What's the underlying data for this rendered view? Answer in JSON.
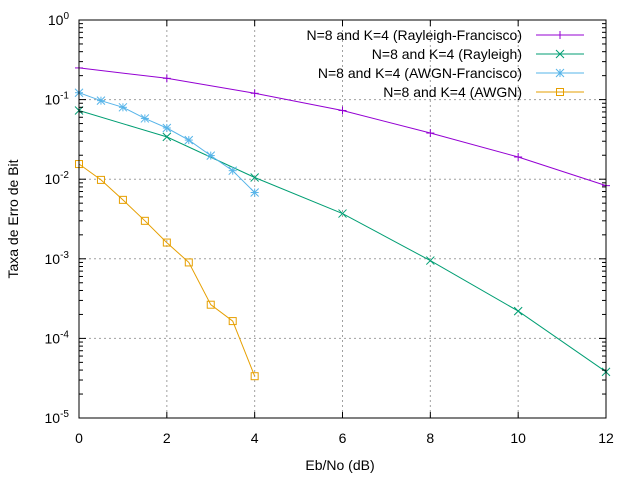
{
  "chart_data": {
    "type": "line",
    "xlabel": "Eb/No (dB)",
    "ylabel": "Taxa de Erro de Bit",
    "xlim": [
      0,
      12
    ],
    "ylim": [
      1e-05,
      1
    ],
    "yscale": "log",
    "x_ticks": [
      "0",
      "2",
      "4",
      "6",
      "8",
      "10",
      "12"
    ],
    "y_ticks": [
      {
        "base": "10",
        "exp": "0"
      },
      {
        "base": "10",
        "exp": "-1"
      },
      {
        "base": "10",
        "exp": "-2"
      },
      {
        "base": "10",
        "exp": "-3"
      },
      {
        "base": "10",
        "exp": "-4"
      },
      {
        "base": "10",
        "exp": "-5"
      }
    ],
    "grid": true,
    "legend_position": "top-right",
    "series": [
      {
        "name": "N=8 and K=4 (Rayleigh-Francisco)",
        "color": "#9400d3",
        "marker": "plus",
        "x": [
          0,
          2,
          4,
          6,
          8,
          10,
          12
        ],
        "y": [
          0.25,
          0.185,
          0.12,
          0.073,
          0.038,
          0.019,
          0.0083
        ]
      },
      {
        "name": "N=8 and K=4 (Rayleigh)",
        "color": "#009e73",
        "marker": "cross",
        "x": [
          0,
          2,
          4,
          6,
          8,
          10,
          12
        ],
        "y": [
          0.073,
          0.034,
          0.0105,
          0.0037,
          0.00095,
          0.00022,
          3.8e-05
        ]
      },
      {
        "name": "N=8 and K=4 (AWGN-Francisco)",
        "color": "#56b4e9",
        "marker": "star",
        "x": [
          0,
          0.5,
          1,
          1.5,
          2,
          2.5,
          3,
          3.5,
          4
        ],
        "y": [
          0.122,
          0.097,
          0.08,
          0.058,
          0.044,
          0.031,
          0.0198,
          0.0128,
          0.0068
        ]
      },
      {
        "name": "N=8 and K=4 (AWGN)",
        "color": "#e69f00",
        "marker": "square",
        "x": [
          0,
          0.5,
          1,
          1.5,
          2,
          2.5,
          3,
          3.5,
          4
        ],
        "y": [
          0.0155,
          0.0098,
          0.0055,
          0.003,
          0.0016,
          0.0009,
          0.000265,
          0.000165,
          3.35e-05
        ]
      }
    ]
  }
}
